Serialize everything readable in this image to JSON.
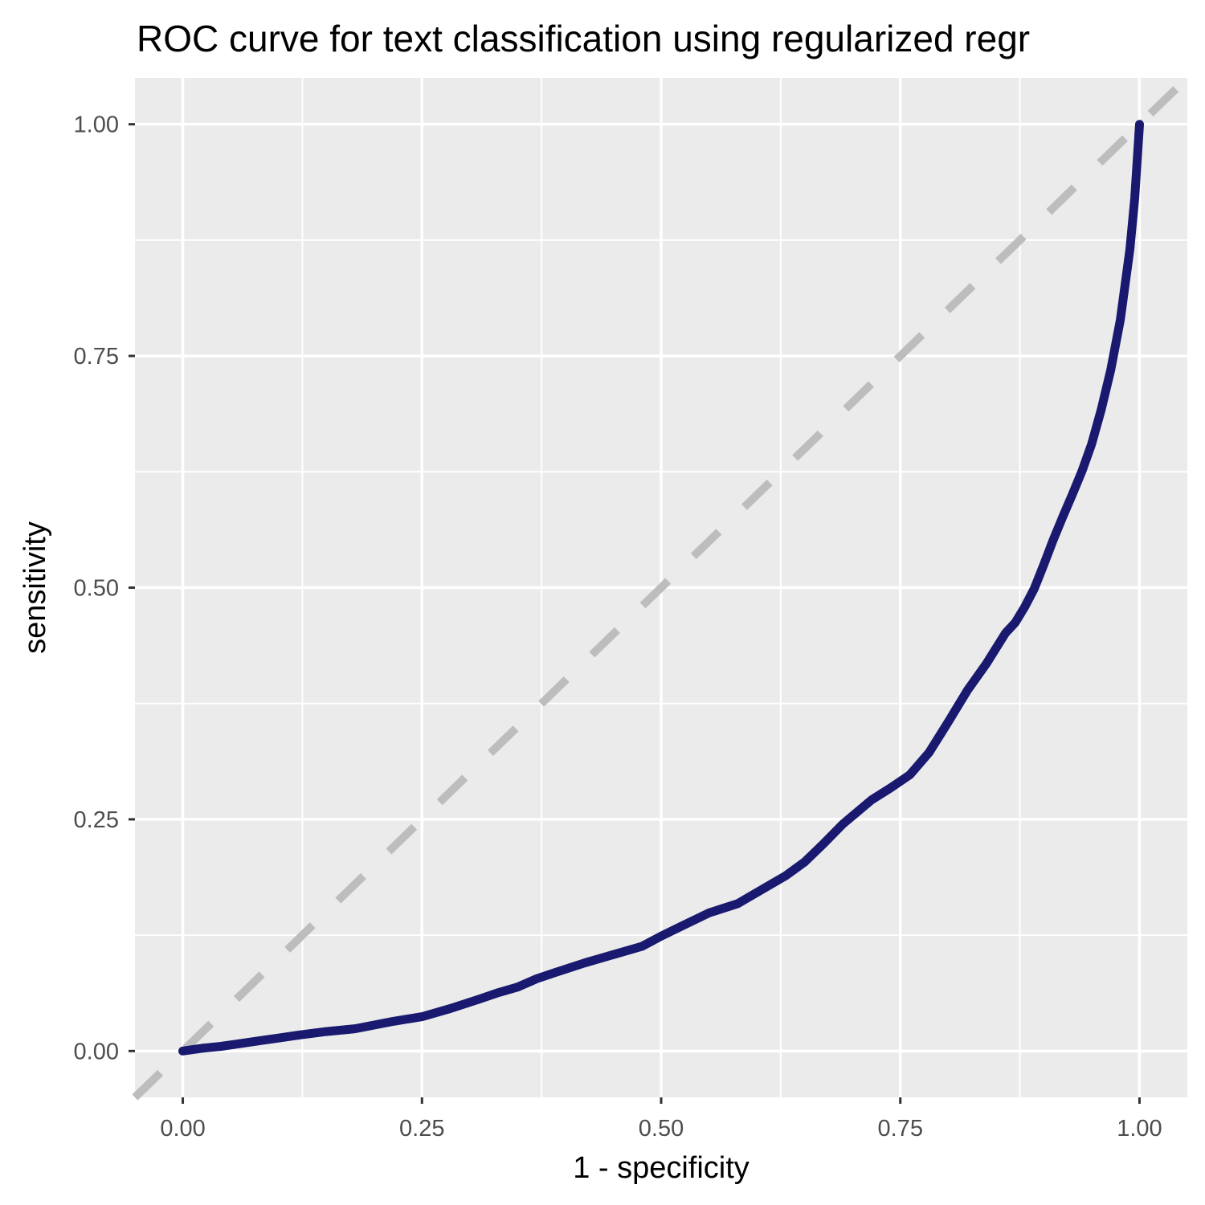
{
  "chart_data": {
    "type": "line",
    "title": "ROC curve for text classification using regularized regr",
    "xlabel": "1 - specificity",
    "ylabel": "sensitivity",
    "xlim": [
      -0.05,
      1.05
    ],
    "ylim": [
      -0.05,
      1.05
    ],
    "x_ticks": [
      0,
      0.25,
      0.5,
      0.75,
      1
    ],
    "x_tick_labels": [
      "0.00",
      "0.25",
      "0.50",
      "0.75",
      "1.00"
    ],
    "y_ticks": [
      0,
      0.25,
      0.5,
      0.75,
      1
    ],
    "y_tick_labels": [
      "0.00",
      "0.25",
      "0.50",
      "0.75",
      "1.00"
    ],
    "grid": true,
    "reference_line": {
      "x": [
        -0.05,
        1.05
      ],
      "y": [
        -0.05,
        1.05
      ],
      "style": "dashed",
      "color": "#bdbdbd"
    },
    "series": [
      {
        "color": "#191970",
        "x": [
          0,
          0.02,
          0.04,
          0.06,
          0.08,
          0.1,
          0.12,
          0.15,
          0.18,
          0.2,
          0.22,
          0.25,
          0.28,
          0.31,
          0.33,
          0.35,
          0.37,
          0.39,
          0.42,
          0.45,
          0.48,
          0.5,
          0.52,
          0.55,
          0.58,
          0.6,
          0.63,
          0.65,
          0.67,
          0.69,
          0.72,
          0.74,
          0.76,
          0.78,
          0.8,
          0.82,
          0.84,
          0.86,
          0.87,
          0.88,
          0.89,
          0.9,
          0.91,
          0.92,
          0.93,
          0.94,
          0.95,
          0.96,
          0.97,
          0.98,
          0.99,
          0.995,
          1.0
        ],
        "y": [
          0.0,
          0.003,
          0.005,
          0.008,
          0.011,
          0.014,
          0.017,
          0.021,
          0.024,
          0.028,
          0.032,
          0.037,
          0.046,
          0.056,
          0.063,
          0.069,
          0.078,
          0.085,
          0.095,
          0.104,
          0.113,
          0.124,
          0.134,
          0.149,
          0.159,
          0.171,
          0.189,
          0.204,
          0.224,
          0.245,
          0.271,
          0.284,
          0.298,
          0.322,
          0.355,
          0.389,
          0.418,
          0.451,
          0.462,
          0.479,
          0.499,
          0.525,
          0.552,
          0.577,
          0.601,
          0.626,
          0.655,
          0.692,
          0.735,
          0.789,
          0.865,
          0.92,
          1.0
        ]
      }
    ]
  }
}
